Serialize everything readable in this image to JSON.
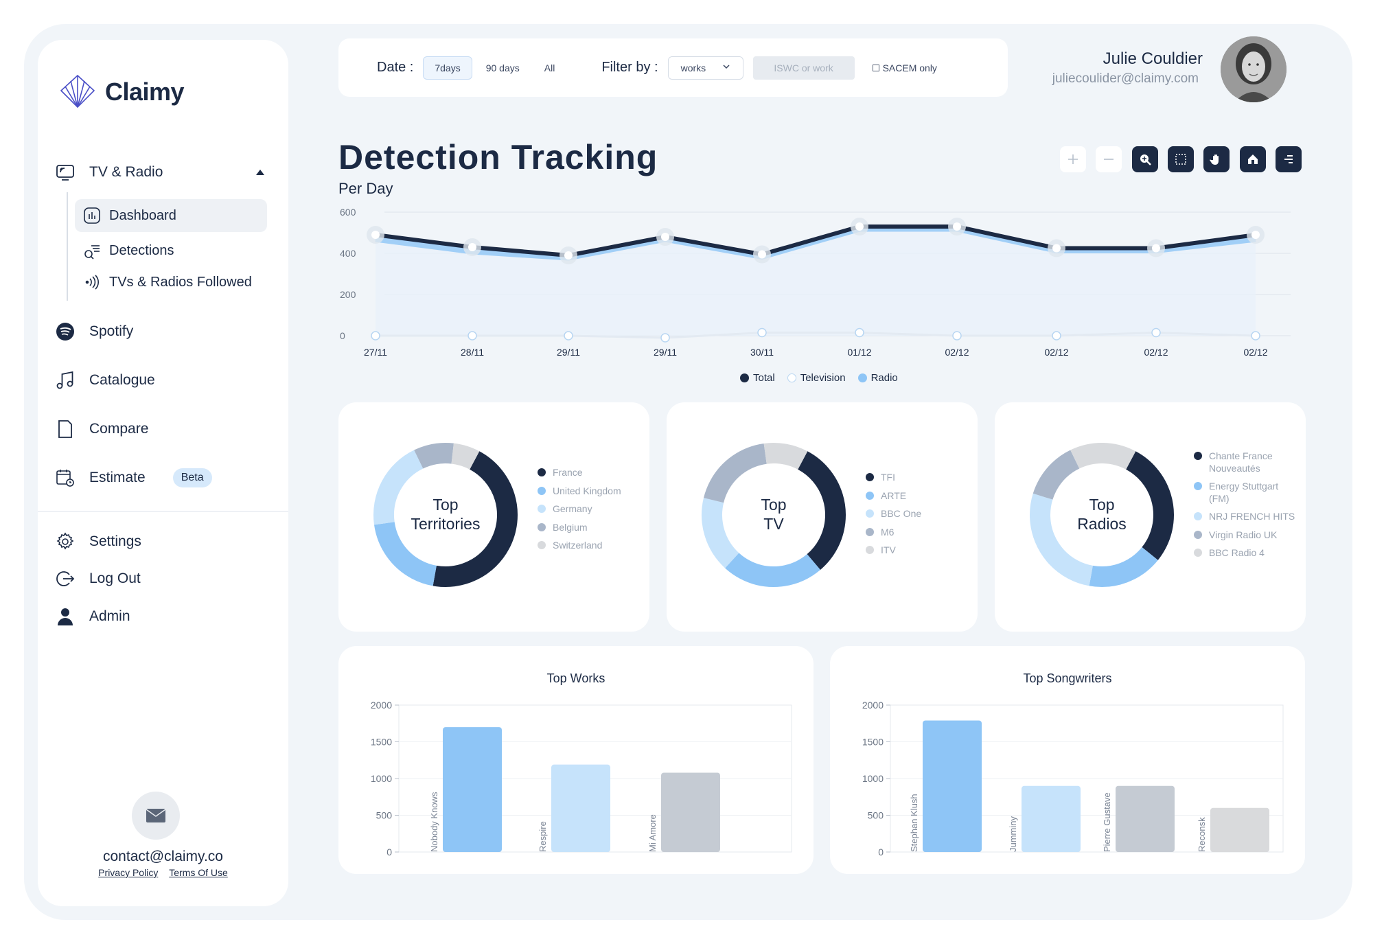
{
  "brand": {
    "name": "Claimy"
  },
  "sidebar": {
    "tv_radio": {
      "label": "TV & Radio"
    },
    "sub_items": [
      {
        "label": "Dashboard"
      },
      {
        "label": "Detections"
      },
      {
        "label": "TVs & Radios Followed"
      }
    ],
    "items": [
      {
        "label": "Spotify"
      },
      {
        "label": "Catalogue"
      },
      {
        "label": "Compare"
      },
      {
        "label": "Estimate",
        "badge": "Beta"
      }
    ],
    "bottom_items": [
      {
        "label": "Settings"
      },
      {
        "label": "Log Out"
      },
      {
        "label": "Admin"
      }
    ],
    "contact": "contact@claimy.co",
    "privacy": "Privacy Policy",
    "terms": "Terms Of Use"
  },
  "filters": {
    "date_label": "Date :",
    "date_options": [
      "7days",
      "90 days",
      "All"
    ],
    "filter_label": "Filter by :",
    "filter_value": "works",
    "search_placeholder": "ISWC or work",
    "checkbox_label": "SACEM only"
  },
  "user": {
    "name": "Julie Couldier",
    "email": "juliecoulider@claimy.com"
  },
  "page": {
    "title": "Detection Tracking",
    "subtitle": "Per Day"
  },
  "colors": {
    "navy": "#1c2a44",
    "blue": "#8ec5f6",
    "light_blue": "#c6e3fb",
    "slate": "#a9b6c9",
    "grey": "#d8dadd"
  },
  "chart_data": [
    {
      "type": "line",
      "title": "Detection Tracking",
      "subtitle": "Per Day",
      "categories": [
        "27/11",
        "28/11",
        "29/11",
        "29/11",
        "30/11",
        "01/12",
        "02/12",
        "02/12",
        "02/12",
        "02/12"
      ],
      "yticks": [
        0,
        200,
        400,
        600
      ],
      "ylim": [
        0,
        600
      ],
      "series": [
        {
          "name": "Total",
          "values": [
            490,
            430,
            390,
            480,
            395,
            530,
            530,
            425,
            425,
            490
          ]
        },
        {
          "name": "Television",
          "values": [
            0,
            0,
            0,
            -10,
            15,
            15,
            0,
            0,
            15,
            0
          ]
        },
        {
          "name": "Radio",
          "values": [
            470,
            410,
            380,
            470,
            385,
            520,
            520,
            415,
            415,
            470
          ]
        }
      ]
    },
    {
      "type": "pie",
      "title": "Top Territories",
      "labels": [
        "France",
        "United Kingdom",
        "Germany",
        "Belgium",
        "Switzerland"
      ],
      "values": [
        45,
        20,
        20,
        9,
        6
      ]
    },
    {
      "type": "pie",
      "title": "Top TV",
      "labels": [
        "TFI",
        "ARTE",
        "BBC One",
        "M6",
        "ITV"
      ],
      "values": [
        31,
        23,
        17,
        19,
        10
      ]
    },
    {
      "type": "pie",
      "title": "Top Radios",
      "labels": [
        "Chante France Nouveautés",
        "Energy Stuttgart (FM)",
        "NRJ FRENCH HITS",
        "Virgin Radio UK",
        "BBC Radio 4"
      ],
      "values": [
        28,
        17,
        27,
        13,
        15
      ]
    },
    {
      "type": "bar",
      "title": "Top Works",
      "categories": [
        "Nobody Knows",
        "Respire",
        "Mi Amore"
      ],
      "values": [
        1700,
        1190,
        1080
      ],
      "ylim": [
        0,
        2000
      ],
      "yticks": [
        0,
        500,
        1000,
        1500,
        2000
      ]
    },
    {
      "type": "bar",
      "title": "Top Songwriters",
      "categories": [
        "Stephan Klush",
        "Jumminy",
        "Pierre Gustave",
        "Reconsk"
      ],
      "values": [
        1790,
        900,
        900,
        600
      ],
      "ylim": [
        0,
        2000
      ],
      "yticks": [
        0,
        500,
        1000,
        1500,
        2000
      ]
    }
  ]
}
